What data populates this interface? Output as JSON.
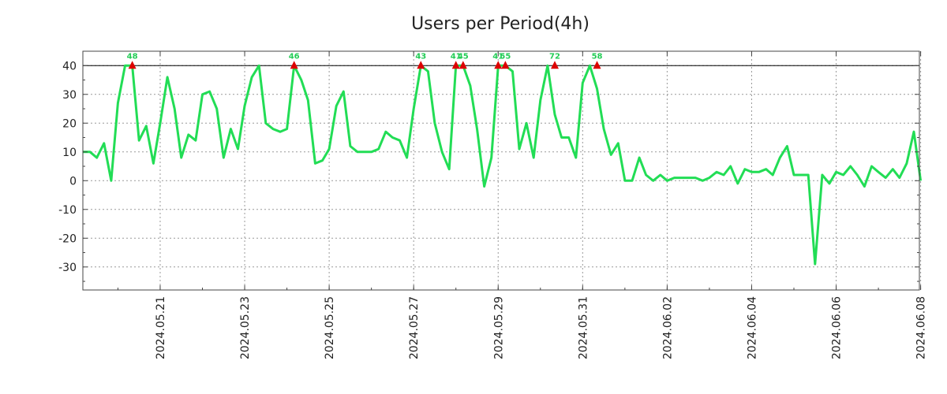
{
  "chart_data": {
    "type": "line",
    "title": "Users per Period(4h)",
    "xlabel": "",
    "ylabel": "",
    "ylim": [
      -38,
      45
    ],
    "xlim": [
      0,
      19.8
    ],
    "yticks": [
      40,
      30,
      20,
      10,
      0,
      -10,
      -20,
      -30
    ],
    "ytick_labels": [
      "40",
      "30",
      "20",
      "10",
      "0",
      "-10",
      "-20",
      "-30"
    ],
    "xticks": [
      {
        "day": 1.83,
        "label": "2024.05.21"
      },
      {
        "day": 3.83,
        "label": "2024.05.23"
      },
      {
        "day": 5.83,
        "label": "2024.05.25"
      },
      {
        "day": 7.83,
        "label": "2024.05.27"
      },
      {
        "day": 9.83,
        "label": "2024.05.29"
      },
      {
        "day": 11.83,
        "label": "2024.05.31"
      },
      {
        "day": 13.83,
        "label": "2024.06.02"
      },
      {
        "day": 15.83,
        "label": "2024.06.04"
      },
      {
        "day": 17.83,
        "label": "2024.06.06"
      },
      {
        "day": 19.83,
        "label": "2024.06.08"
      }
    ],
    "cap": 40,
    "series": [
      {
        "name": "users",
        "color": "#22dd55",
        "x": [
          0,
          0.17,
          0.33,
          0.5,
          0.67,
          0.83,
          1,
          1.17,
          1.33,
          1.5,
          1.67,
          1.83,
          2,
          2.17,
          2.33,
          2.5,
          2.67,
          2.83,
          3,
          3.17,
          3.33,
          3.5,
          3.67,
          3.83,
          4,
          4.17,
          4.33,
          4.5,
          4.67,
          4.83,
          5,
          5.17,
          5.33,
          5.5,
          5.67,
          5.83,
          6,
          6.17,
          6.33,
          6.5,
          6.67,
          6.83,
          7,
          7.17,
          7.33,
          7.5,
          7.67,
          7.83,
          8,
          8.17,
          8.33,
          8.5,
          8.67,
          8.83,
          9,
          9.17,
          9.33,
          9.5,
          9.67,
          9.83,
          10,
          10.17,
          10.33,
          10.5,
          10.67,
          10.83,
          11,
          11.17,
          11.33,
          11.5,
          11.67,
          11.83,
          12,
          12.17,
          12.33,
          12.5,
          12.67,
          12.83,
          13,
          13.17,
          13.33,
          13.5,
          13.67,
          13.83,
          14,
          14.17,
          14.33,
          14.5,
          14.67,
          14.83,
          15,
          15.17,
          15.33,
          15.5,
          15.67,
          15.83,
          16,
          16.17,
          16.33,
          16.5,
          16.67,
          16.83,
          17,
          17.17,
          17.33,
          17.5,
          17.67,
          17.83,
          18,
          18.17,
          18.33,
          18.5,
          18.67,
          18.83,
          19,
          19.17,
          19.33,
          19.5,
          19.67,
          19.83
        ],
        "values": [
          10,
          10,
          8,
          13,
          0,
          27,
          40,
          40,
          14,
          19,
          6,
          20,
          36,
          25,
          8,
          16,
          14,
          30,
          31,
          25,
          8,
          18,
          11,
          26,
          36,
          40,
          20,
          18,
          17,
          18,
          40,
          35,
          28,
          6,
          7,
          11,
          26,
          31,
          12,
          10,
          10,
          10,
          11,
          17,
          15,
          14,
          8,
          25,
          40,
          38,
          20,
          10,
          4,
          40,
          40,
          33,
          18,
          -2,
          8,
          40,
          40,
          38,
          11,
          20,
          8,
          28,
          40,
          23,
          15,
          15,
          8,
          34,
          40,
          32,
          18,
          9,
          13,
          0,
          0,
          8,
          2,
          0,
          2,
          0,
          1,
          1,
          1,
          1,
          0,
          1,
          3,
          2,
          5,
          -1,
          4,
          3,
          3,
          4,
          2,
          8,
          12,
          2,
          2,
          2,
          -29,
          2,
          -1,
          3,
          2,
          5,
          2,
          -2,
          5,
          3,
          1,
          4,
          1,
          6,
          17,
          0
        ]
      }
    ],
    "peaks": [
      {
        "x": 1.17,
        "label": "48"
      },
      {
        "x": 5.0,
        "label": "46"
      },
      {
        "x": 8.0,
        "label": "43"
      },
      {
        "x": 8.83,
        "label": "41"
      },
      {
        "x": 9.0,
        "label": "45"
      },
      {
        "x": 9.83,
        "label": "41"
      },
      {
        "x": 10.0,
        "label": "55"
      },
      {
        "x": 11.17,
        "label": "72"
      },
      {
        "x": 12.17,
        "label": "58"
      }
    ],
    "grid": true,
    "legend": "none"
  }
}
